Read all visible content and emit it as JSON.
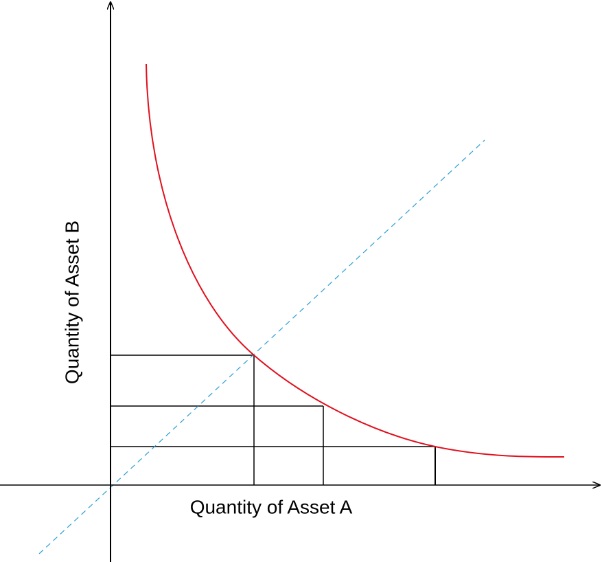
{
  "axes": {
    "x_label": "Quantity of Asset A",
    "y_label": "Quantity of Asset B"
  }
}
